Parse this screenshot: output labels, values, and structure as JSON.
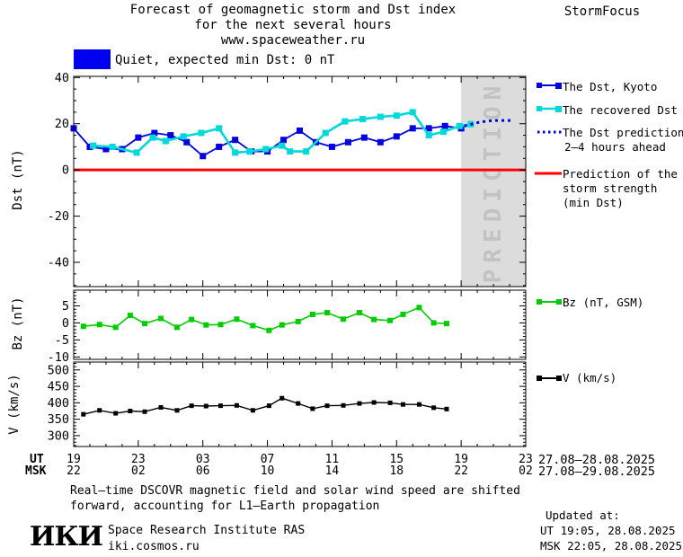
{
  "header": {
    "title_line1": "Forecast of geomagnetic storm and Dst index",
    "title_line2": "for the next several hours",
    "title_line3": "www.spaceweather.ru",
    "brand": "StormFocus"
  },
  "status": {
    "label": "Quiet, expected min Dst: 0 nT"
  },
  "legend": {
    "kyoto": "The Dst, Kyoto",
    "recovered": "The recovered Dst",
    "prediction_line1": "The Dst prediction",
    "prediction_line2": "2–4 hours ahead",
    "storm_line1": "Prediction of the",
    "storm_line2": "storm strength",
    "storm_line3": "(min Dst)",
    "bz": "Bz (nT, GSM)",
    "v": "V (km/s)"
  },
  "axis": {
    "ut_label": "UT",
    "msk_label": "MSK",
    "ut_hours": [
      "19",
      "23",
      "03",
      "07",
      "11",
      "15",
      "19",
      "23"
    ],
    "msk_hours": [
      "22",
      "02",
      "06",
      "10",
      "14",
      "18",
      "22",
      "02"
    ],
    "ut_dates": "27.08–28.08.2025",
    "msk_dates": "27.08–29.08.2025"
  },
  "footer": {
    "note_line1": "Real–time DSCOVR magnetic field and solar wind speed are shifted",
    "note_line2": "forward, accounting for L1–Earth propagation",
    "logo_text": "ИКИ",
    "org_line1": "Space Research Institute RAS",
    "org_line2": "iki.cosmos.ru",
    "updated_label": "Updated at:",
    "updated_ut": "UT  19:05, 28.08.2025",
    "updated_msk": "MSK 22:05, 28.08.2025"
  },
  "colors": {
    "status_blue": "#0000f0",
    "kyoto_blue": "#0000e0",
    "recovered_cyan": "#00d9d9",
    "prediction_blue": "#0000e0",
    "storm_red": "#ff0000",
    "bz_green": "#00cc00",
    "v_black": "#000000",
    "band_gray": "#dcdcdc",
    "band_text": "#c2c2c2"
  },
  "chart_data": [
    {
      "type": "line",
      "ylabel": "Dst (nT)",
      "ylim": [
        -50.5,
        40.5
      ],
      "yticks": [
        40,
        20,
        0,
        -20,
        -40
      ],
      "yminor_step": 5,
      "xlim": [
        0,
        28
      ],
      "xticks_hours": [
        0,
        4,
        8,
        12,
        16,
        20,
        24,
        28
      ],
      "xmajor_step": 4,
      "xminor_step": 1,
      "prediction_band": {
        "x_start": 24,
        "x_end": 28,
        "label": "PREDICTION"
      },
      "zero_line": {
        "y": 0
      },
      "series": [
        {
          "id": "dst-kyoto",
          "name": "The Dst, Kyoto",
          "color": "#0000e0",
          "marker": "square",
          "marker_size": 7,
          "width": 1.8,
          "x": [
            0,
            1,
            2,
            3,
            4,
            5,
            6,
            7,
            8,
            9,
            10,
            11,
            12,
            13,
            14,
            15,
            16,
            17,
            18,
            19,
            20,
            21,
            22,
            23,
            24
          ],
          "y": [
            18,
            10,
            9,
            9,
            14,
            16,
            15,
            12,
            6,
            10,
            13,
            8,
            8,
            13,
            17,
            12,
            10,
            12,
            14,
            12,
            14.5,
            18,
            18,
            19,
            18
          ]
        },
        {
          "id": "dst-recovered",
          "name": "The recovered Dst",
          "color": "#00d9d9",
          "marker": "square",
          "marker_size": 7,
          "width": 2.6,
          "x": [
            1.2,
            2.4,
            3.9,
            4.9,
            5.7,
            6.8,
            7.9,
            9.0,
            10.0,
            10.9,
            11.9,
            12.9,
            13.4,
            14.4,
            15.6,
            16.8,
            17.9,
            19.0,
            20.0,
            21.0,
            22.0,
            22.9,
            23.9,
            24.6
          ],
          "y": [
            10.5,
            10,
            7.5,
            14,
            12.5,
            14.5,
            16,
            18,
            7.5,
            8,
            9,
            10.5,
            8,
            8,
            16,
            21,
            22,
            23,
            23.5,
            25,
            15,
            16.5,
            19,
            19.8
          ]
        },
        {
          "id": "dst-prediction",
          "name": "The Dst prediction 2-4 hours ahead",
          "color": "#0000e0",
          "style": "dotted",
          "x": [
            24.2,
            25.2,
            26.0,
            27.2
          ],
          "y": [
            19,
            20.8,
            21.4,
            21.4
          ]
        }
      ]
    },
    {
      "type": "line",
      "ylabel": "Bz (nT)",
      "legend": "Bz (nT, GSM)",
      "ylim": [
        -10.7,
        9.6
      ],
      "yticks": [
        5,
        0,
        -5,
        -10
      ],
      "yminor_step": 1,
      "xlim": [
        0,
        28
      ],
      "xmajor_step": 4,
      "xminor_step": 1,
      "series": [
        {
          "id": "bz",
          "name": "Bz (nT, GSM)",
          "color": "#00cc00",
          "marker": "square",
          "marker_size": 6,
          "width": 1.6,
          "x": [
            0.6,
            1.6,
            2.6,
            3.5,
            4.4,
            5.4,
            6.4,
            7.3,
            8.2,
            9.1,
            10.1,
            11.1,
            12.1,
            12.9,
            13.9,
            14.8,
            15.7,
            16.7,
            17.7,
            18.6,
            19.6,
            20.4,
            21.4,
            22.3,
            23.1
          ],
          "y": [
            -1,
            -0.5,
            -1.3,
            2.2,
            -0.2,
            1.3,
            -1.3,
            1,
            -0.6,
            -0.5,
            1.1,
            -0.8,
            -2.2,
            -0.6,
            0.4,
            2.5,
            3,
            1.1,
            3,
            1,
            0.7,
            2.5,
            4.5,
            0,
            -0.2
          ]
        }
      ]
    },
    {
      "type": "line",
      "ylabel": "V (km/s)",
      "legend": "V (km/s)",
      "ylim": [
        267,
        524
      ],
      "yticks": [
        500,
        450,
        400,
        350,
        300
      ],
      "yminor_step": 10,
      "xlim": [
        0,
        28
      ],
      "xmajor_step": 4,
      "xminor_step": 1,
      "series": [
        {
          "id": "v-speed",
          "name": "V (km/s)",
          "color": "#000000",
          "marker": "square",
          "marker_size": 5,
          "width": 1.4,
          "x": [
            0.6,
            1.6,
            2.6,
            3.5,
            4.4,
            5.4,
            6.4,
            7.3,
            8.2,
            9.1,
            10.1,
            11.1,
            12.1,
            12.9,
            13.9,
            14.8,
            15.7,
            16.7,
            17.7,
            18.6,
            19.6,
            20.4,
            21.4,
            22.3,
            23.1
          ],
          "y": [
            365,
            377,
            368,
            375,
            373,
            386,
            377,
            391,
            390,
            391,
            392,
            377,
            391,
            414,
            398,
            382,
            391,
            392,
            398,
            401,
            400,
            395,
            395,
            385,
            381
          ]
        }
      ]
    }
  ]
}
